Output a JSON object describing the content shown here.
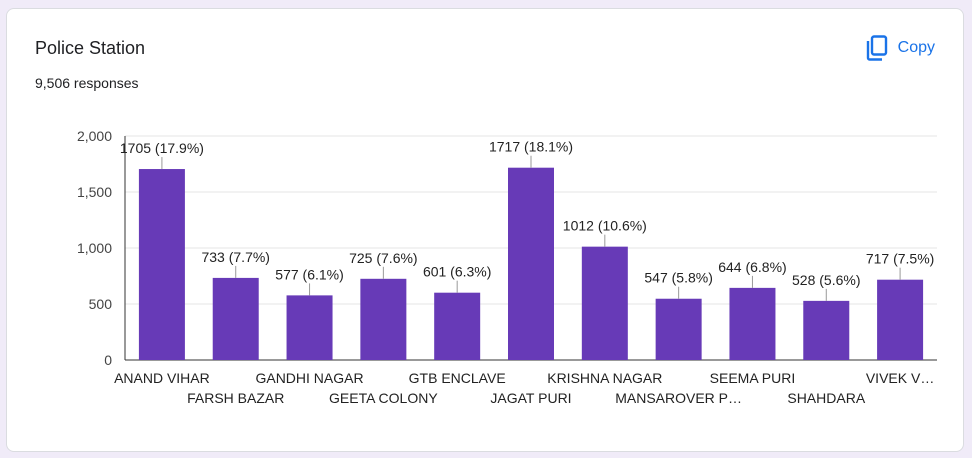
{
  "card": {
    "title": "Police Station",
    "responses": "9,506 responses",
    "copy_label": "Copy"
  },
  "colors": {
    "bar": "#673ab7",
    "accent": "#1a73e8",
    "grid": "#e6e6e6",
    "axis": "#333333"
  },
  "chart_data": {
    "type": "bar",
    "categories": [
      "ANAND VIHAR",
      "FARSH BAZAR",
      "GANDHI NAGAR",
      "GEETA COLONY",
      "GTB ENCLAVE",
      "JAGAT PURI",
      "KRISHNA NAGAR",
      "MANSAROVER P…",
      "SEEMA PURI",
      "SHAHDARA",
      "VIVEK V…"
    ],
    "values": [
      1705,
      733,
      577,
      725,
      601,
      1717,
      1012,
      547,
      644,
      528,
      717
    ],
    "data_labels": [
      "1705 (17.9%)",
      "733 (7.7%)",
      "577 (6.1%)",
      "725 (7.6%)",
      "601 (6.3%)",
      "1717 (18.1%)",
      "1012 (10.6%)",
      "547 (5.8%)",
      "644 (6.8%)",
      "528 (5.6%)",
      "717 (7.5%)"
    ],
    "y_ticks": [
      0,
      500,
      1000,
      1500,
      2000
    ],
    "y_tick_labels": [
      "0",
      "500",
      "1,000",
      "1,500",
      "2,000"
    ],
    "ylim": [
      0,
      2000
    ],
    "grid": true,
    "legend": "none"
  }
}
